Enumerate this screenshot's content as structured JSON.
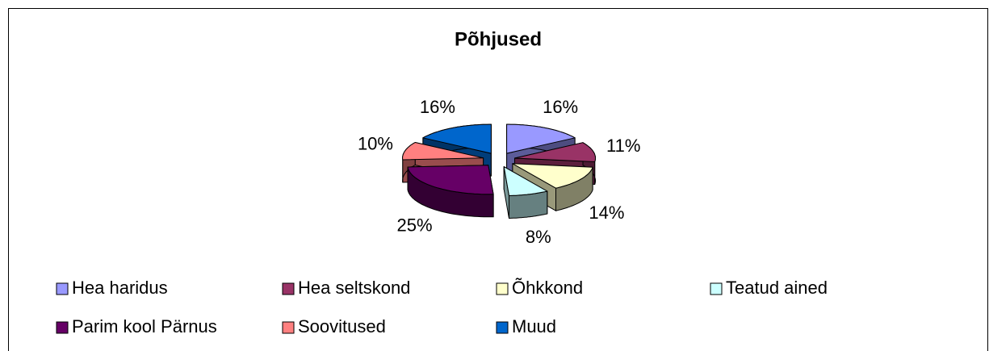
{
  "chart_data": {
    "type": "pie",
    "title": "Põhjused",
    "categories": [
      "Hea haridus",
      "Hea seltskond",
      "Õhkkond",
      "Teatud ained",
      "Parim kool Pärnus",
      "Soovitused",
      "Muud"
    ],
    "values": [
      16,
      11,
      14,
      8,
      25,
      10,
      16
    ],
    "value_labels": [
      "16%",
      "11%",
      "14%",
      "8%",
      "25%",
      "10%",
      "16%"
    ],
    "colors": [
      "#9999FF",
      "#993366",
      "#FFFFCC",
      "#CCFFFF",
      "#660066",
      "#FF8080",
      "#0066CC"
    ],
    "legend": "bottom"
  }
}
